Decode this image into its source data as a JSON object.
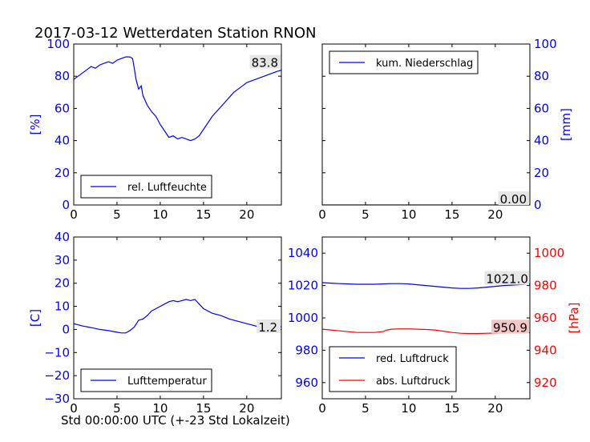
{
  "title": "2017-03-12 Wetterdaten Station RNON",
  "xlabel": "Std 00:00:00 UTC (+-23 Std Lokalzeit)",
  "colors": {
    "primary": "#0000ff",
    "secondary": "#ff0000",
    "axis": "#000000"
  },
  "chart_data": [
    {
      "id": "humidity",
      "type": "line",
      "xlim": [
        0,
        24
      ],
      "xticks": [
        0,
        5,
        10,
        15,
        20
      ],
      "ylim": [
        0,
        100
      ],
      "yticks": [
        0,
        20,
        40,
        60,
        80,
        100
      ],
      "ylabel": "[%]",
      "ylabel_side": "left",
      "tick_color": "#0000ff",
      "legend_location": "lower-left",
      "series": [
        {
          "name": "rel. Luftfeuchte",
          "color": "#0000ff",
          "x": [
            0,
            0.5,
            1,
            1.5,
            2,
            2.5,
            3,
            3.5,
            4,
            4.5,
            5,
            5.5,
            6,
            6.5,
            6.8,
            7,
            7.2,
            7.5,
            7.8,
            8,
            8.5,
            9,
            9.5,
            10,
            10.5,
            11,
            11.5,
            12,
            12.5,
            13,
            13.5,
            14,
            14.5,
            15,
            15.5,
            16,
            16.5,
            17,
            17.5,
            18,
            18.5,
            19,
            19.5,
            20,
            20.5,
            21,
            21.5,
            22,
            22.5,
            23,
            23.5,
            24
          ],
          "y": [
            78,
            80,
            82,
            84,
            86,
            85,
            87,
            88,
            89,
            88,
            90,
            91,
            92,
            92,
            91,
            85,
            78,
            72,
            74,
            68,
            62,
            58,
            55,
            50,
            46,
            42,
            43,
            41,
            42,
            41,
            40,
            41,
            43,
            47,
            51,
            55,
            58,
            61,
            64,
            67,
            70,
            72,
            74,
            76,
            77,
            78,
            79,
            80,
            81,
            82,
            83,
            83.8
          ]
        }
      ],
      "last_value_label": "83.8",
      "last_value_bg": "#e6e6e6"
    },
    {
      "id": "precipitation",
      "type": "line",
      "xlim": [
        0,
        24
      ],
      "xticks": [
        0,
        5,
        10,
        15,
        20
      ],
      "ylim": [
        0,
        100
      ],
      "yticks": [
        0,
        20,
        40,
        60,
        80,
        100
      ],
      "ylabel": "[mm]",
      "ylabel_side": "right",
      "tick_color": "#0000ff",
      "legend_location": "top-left",
      "series": [
        {
          "name": "kum. Niederschlag",
          "color": "#0000ff",
          "x": [
            0,
            24
          ],
          "y": [
            0,
            0
          ]
        }
      ],
      "last_value_label": "0.00",
      "last_value_bg": "#e6e6e6"
    },
    {
      "id": "temperature",
      "type": "line",
      "xlim": [
        0,
        24
      ],
      "xticks": [
        0,
        5,
        10,
        15,
        20
      ],
      "ylim": [
        -30,
        40
      ],
      "yticks": [
        -30,
        -20,
        -10,
        0,
        10,
        20,
        30,
        40
      ],
      "ylabel": "[C]",
      "ylabel_side": "left",
      "tick_color": "#0000ff",
      "legend_location": "lower-left",
      "series": [
        {
          "name": "Lufttemperatur",
          "color": "#0000ff",
          "x": [
            0,
            1,
            2,
            3,
            4,
            5,
            5.5,
            6,
            6.5,
            7,
            7.5,
            8,
            8.5,
            9,
            9.5,
            10,
            10.5,
            11,
            11.5,
            12,
            12.5,
            13,
            13.5,
            14,
            14.5,
            15,
            16,
            17,
            18,
            19,
            20,
            21,
            22,
            23,
            24
          ],
          "y": [
            2.5,
            1.5,
            0.8,
            0,
            -0.5,
            -1.2,
            -1.5,
            -1.5,
            -0.5,
            1,
            4,
            4.5,
            6,
            8,
            9,
            10,
            11,
            12,
            12.5,
            12,
            12.5,
            13,
            12.5,
            13,
            11,
            9,
            7,
            6,
            4.5,
            3.5,
            2.5,
            1.5,
            0.5,
            0,
            1.2
          ]
        }
      ],
      "last_value_label": "1.2",
      "last_value_bg": "#e6e6e6"
    },
    {
      "id": "pressure",
      "type": "line",
      "xlim": [
        0,
        24
      ],
      "xticks": [
        0,
        5,
        10,
        15,
        20
      ],
      "ylim": [
        950,
        1050
      ],
      "yticks": [
        960,
        980,
        1000,
        1020,
        1040
      ],
      "y2lim": [
        910,
        1010
      ],
      "y2ticks": [
        920,
        940,
        960,
        980,
        1000
      ],
      "y2label": "[hPa]",
      "tick_color": "#0000ff",
      "tick2_color": "#ff0000",
      "legend_location": "lower-left",
      "series": [
        {
          "name": "red. Luftdruck",
          "color": "#0000ff",
          "axis": "left",
          "x": [
            0,
            1,
            2,
            3,
            4,
            5,
            6,
            7,
            8,
            9,
            10,
            11,
            12,
            13,
            14,
            15,
            16,
            17,
            18,
            19,
            20,
            21,
            22,
            23,
            24
          ],
          "y": [
            1021.8,
            1021.5,
            1021.2,
            1021,
            1020.8,
            1020.8,
            1020.8,
            1021,
            1021.2,
            1021.2,
            1021,
            1020.5,
            1020,
            1019.5,
            1019,
            1018.5,
            1018.2,
            1018.2,
            1018.5,
            1019,
            1019.5,
            1020,
            1020.3,
            1020.6,
            1021
          ]
        },
        {
          "name": "abs. Luftdruck",
          "color": "#ff0000",
          "axis": "right",
          "x": [
            0,
            1,
            2,
            3,
            4,
            5,
            6,
            7,
            7.5,
            8,
            9,
            10,
            11,
            12,
            13,
            14,
            15,
            16,
            17,
            18,
            19,
            20,
            21,
            22,
            23,
            24
          ],
          "y": [
            953,
            952.5,
            952,
            951.5,
            951,
            951,
            951,
            951.5,
            952.5,
            953,
            953.2,
            953.2,
            953,
            952.8,
            952.5,
            951.8,
            951,
            950.5,
            950.3,
            950.3,
            950.5,
            950.6,
            950.7,
            950.8,
            950.8,
            950.9
          ]
        }
      ],
      "last_value_labels": [
        {
          "text": "1021.0",
          "axis": "left",
          "value": 1021,
          "bg": "#e6e6e6"
        },
        {
          "text": "950.9",
          "axis": "right",
          "value": 950.9,
          "bg": "#f4c6c6"
        }
      ]
    }
  ]
}
